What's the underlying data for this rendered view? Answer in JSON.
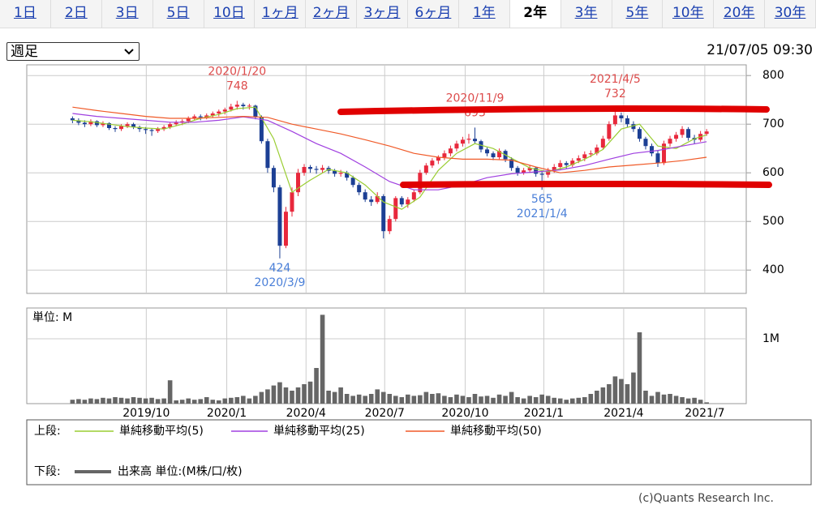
{
  "tabs": {
    "items": [
      "1日",
      "2日",
      "3日",
      "5日",
      "10日",
      "1ヶ月",
      "2ヶ月",
      "3ヶ月",
      "6ヶ月",
      "1年",
      "2年",
      "3年",
      "5年",
      "10年",
      "20年",
      "30年"
    ],
    "selected": 10
  },
  "period_select": "週足",
  "timestamp": "21/07/05 09:30",
  "chart_data": [
    {
      "type": "candlestick",
      "up_color": "#e8283c",
      "down_color": "#1c3f94",
      "candles": [
        [
          712,
          716,
          702,
          708
        ],
        [
          708,
          712,
          698,
          703
        ],
        [
          703,
          708,
          694,
          700
        ],
        [
          700,
          710,
          696,
          706
        ],
        [
          706,
          708,
          694,
          698
        ],
        [
          698,
          706,
          694,
          702
        ],
        [
          702,
          704,
          688,
          692
        ],
        [
          692,
          696,
          684,
          690
        ],
        [
          690,
          700,
          686,
          696
        ],
        [
          696,
          704,
          692,
          700
        ],
        [
          700,
          703,
          690,
          694
        ],
        [
          694,
          697,
          684,
          690
        ],
        [
          690,
          694,
          680,
          688
        ],
        [
          688,
          692,
          676,
          686
        ],
        [
          686,
          694,
          682,
          690
        ],
        [
          690,
          698,
          686,
          694
        ],
        [
          694,
          704,
          690,
          700
        ],
        [
          700,
          708,
          696,
          703
        ],
        [
          703,
          710,
          698,
          706
        ],
        [
          706,
          716,
          702,
          712
        ],
        [
          712,
          720,
          708,
          716
        ],
        [
          716,
          720,
          708,
          714
        ],
        [
          714,
          722,
          710,
          718
        ],
        [
          718,
          726,
          714,
          722
        ],
        [
          722,
          730,
          716,
          726
        ],
        [
          726,
          734,
          720,
          730
        ],
        [
          730,
          742,
          726,
          736
        ],
        [
          736,
          748,
          730,
          740
        ],
        [
          740,
          744,
          730,
          737
        ],
        [
          737,
          742,
          730,
          738
        ],
        [
          738,
          740,
          710,
          715
        ],
        [
          715,
          718,
          660,
          665
        ],
        [
          665,
          670,
          600,
          610
        ],
        [
          610,
          615,
          560,
          570
        ],
        [
          570,
          575,
          424,
          450
        ],
        [
          450,
          530,
          445,
          520
        ],
        [
          520,
          570,
          510,
          560
        ],
        [
          560,
          608,
          552,
          600
        ],
        [
          600,
          618,
          594,
          612
        ],
        [
          612,
          616,
          600,
          608
        ],
        [
          608,
          614,
          598,
          606
        ],
        [
          606,
          616,
          600,
          610
        ],
        [
          610,
          614,
          598,
          604
        ],
        [
          604,
          608,
          592,
          598
        ],
        [
          598,
          606,
          592,
          600
        ],
        [
          600,
          604,
          584,
          590
        ],
        [
          590,
          594,
          570,
          575
        ],
        [
          575,
          580,
          554,
          560
        ],
        [
          560,
          566,
          540,
          545
        ],
        [
          545,
          552,
          532,
          540
        ],
        [
          540,
          560,
          536,
          552
        ],
        [
          552,
          556,
          465,
          480
        ],
        [
          480,
          512,
          474,
          505
        ],
        [
          505,
          552,
          500,
          548
        ],
        [
          548,
          552,
          530,
          535
        ],
        [
          535,
          550,
          528,
          545
        ],
        [
          545,
          565,
          540,
          560
        ],
        [
          560,
          606,
          556,
          600
        ],
        [
          600,
          620,
          596,
          615
        ],
        [
          615,
          630,
          610,
          625
        ],
        [
          625,
          636,
          618,
          632
        ],
        [
          632,
          646,
          626,
          640
        ],
        [
          640,
          656,
          634,
          650
        ],
        [
          650,
          666,
          644,
          660
        ],
        [
          660,
          674,
          654,
          668
        ],
        [
          668,
          680,
          660,
          670
        ],
        [
          670,
          693,
          660,
          665
        ],
        [
          665,
          668,
          642,
          648
        ],
        [
          648,
          652,
          634,
          640
        ],
        [
          640,
          644,
          626,
          632
        ],
        [
          632,
          650,
          628,
          645
        ],
        [
          645,
          648,
          622,
          628
        ],
        [
          628,
          632,
          604,
          610
        ],
        [
          610,
          614,
          594,
          600
        ],
        [
          600,
          610,
          596,
          605
        ],
        [
          605,
          616,
          600,
          610
        ],
        [
          610,
          612,
          592,
          598
        ],
        [
          598,
          604,
          565,
          596
        ],
        [
          596,
          610,
          590,
          604
        ],
        [
          604,
          618,
          600,
          612
        ],
        [
          612,
          626,
          606,
          620
        ],
        [
          620,
          624,
          608,
          616
        ],
        [
          616,
          630,
          612,
          625
        ],
        [
          625,
          636,
          620,
          630
        ],
        [
          630,
          644,
          624,
          638
        ],
        [
          638,
          646,
          632,
          640
        ],
        [
          640,
          658,
          636,
          652
        ],
        [
          652,
          676,
          648,
          670
        ],
        [
          670,
          706,
          666,
          700
        ],
        [
          700,
          732,
          696,
          718
        ],
        [
          718,
          724,
          704,
          712
        ],
        [
          712,
          718,
          694,
          700
        ],
        [
          700,
          706,
          684,
          690
        ],
        [
          690,
          694,
          664,
          670
        ],
        [
          670,
          674,
          648,
          655
        ],
        [
          655,
          660,
          634,
          640
        ],
        [
          640,
          646,
          612,
          620
        ],
        [
          620,
          666,
          616,
          660
        ],
        [
          660,
          676,
          654,
          670
        ],
        [
          670,
          684,
          664,
          678
        ],
        [
          678,
          696,
          672,
          690
        ],
        [
          690,
          694,
          666,
          672
        ],
        [
          672,
          678,
          660,
          668
        ],
        [
          668,
          686,
          664,
          680
        ],
        [
          680,
          690,
          676,
          685
        ]
      ],
      "xlim": [
        -7.5,
        110.5
      ],
      "xticks": [
        12.1,
        25.3,
        38.3,
        51.2,
        64.4,
        77.3,
        90.4,
        103.7
      ],
      "ylim": [
        352,
        822
      ],
      "yticks": [
        400,
        500,
        600,
        700,
        800
      ],
      "grid": true,
      "series": [
        {
          "name": "単純移動平均(5)",
          "color": "#9acd32",
          "x": [
            0,
            3,
            6,
            9,
            12,
            15,
            18,
            21,
            24,
            27,
            30,
            33,
            36,
            39,
            42,
            45,
            48,
            51,
            54,
            57,
            60,
            63,
            66,
            69,
            72,
            75,
            78,
            81,
            84,
            87,
            90,
            93,
            96,
            99,
            102,
            104
          ],
          "values": [
            708,
            705,
            700,
            695,
            692,
            690,
            700,
            712,
            720,
            732,
            735,
            670,
            560,
            585,
            607,
            600,
            575,
            540,
            525,
            550,
            605,
            640,
            660,
            650,
            630,
            610,
            602,
            612,
            628,
            648,
            690,
            700,
            655,
            650,
            670,
            678
          ]
        },
        {
          "name": "単純移動平均(25)",
          "color": "#a040e0",
          "x": [
            0,
            4,
            8,
            12,
            16,
            20,
            24,
            28,
            32,
            36,
            40,
            44,
            48,
            52,
            56,
            60,
            64,
            68,
            72,
            76,
            80,
            84,
            88,
            92,
            96,
            100,
            104
          ],
          "values": [
            722,
            716,
            712,
            708,
            704,
            704,
            708,
            715,
            708,
            685,
            660,
            640,
            612,
            582,
            565,
            565,
            575,
            590,
            598,
            602,
            606,
            615,
            628,
            640,
            646,
            655,
            664
          ]
        },
        {
          "name": "単純移動平均(50)",
          "color": "#f05a28",
          "x": [
            0,
            4,
            8,
            12,
            16,
            20,
            24,
            28,
            32,
            36,
            40,
            44,
            48,
            52,
            56,
            60,
            64,
            68,
            72,
            76,
            80,
            84,
            88,
            92,
            96,
            100,
            104
          ],
          "values": [
            735,
            728,
            722,
            716,
            712,
            712,
            714,
            716,
            714,
            700,
            690,
            680,
            668,
            655,
            640,
            632,
            628,
            628,
            626,
            612,
            600,
            605,
            612,
            616,
            620,
            625,
            632
          ]
        }
      ],
      "annotations": [
        {
          "label": "2020/1/20",
          "value": 748,
          "x": 27,
          "kind": "high",
          "color": "#dd4b4b"
        },
        {
          "label": "2020/11/9",
          "value": 693,
          "x": 66,
          "kind": "high",
          "color": "#dd4b4b"
        },
        {
          "label": "2021/4/5",
          "value": 732,
          "x": 89,
          "kind": "high",
          "color": "#dd4b4b"
        },
        {
          "label": "2020/3/9",
          "value": 424,
          "x": 34,
          "kind": "low",
          "color": "#4a7fd8"
        },
        {
          "label": "2021/1/4",
          "value": 565,
          "x": 77,
          "kind": "low",
          "color": "#4a7fd8"
        }
      ]
    },
    {
      "type": "bar",
      "axis_label": "単位: M",
      "series_name": "出来高 単位:(M株/口/枚)",
      "color": "#666666",
      "values": [
        0.06,
        0.07,
        0.06,
        0.08,
        0.07,
        0.09,
        0.08,
        0.1,
        0.09,
        0.08,
        0.1,
        0.09,
        0.08,
        0.09,
        0.07,
        0.08,
        0.36,
        0.05,
        0.06,
        0.08,
        0.06,
        0.07,
        0.1,
        0.06,
        0.05,
        0.08,
        0.09,
        0.1,
        0.12,
        0.08,
        0.12,
        0.18,
        0.22,
        0.28,
        0.33,
        0.25,
        0.2,
        0.25,
        0.3,
        0.34,
        0.55,
        1.37,
        0.2,
        0.18,
        0.25,
        0.15,
        0.12,
        0.14,
        0.12,
        0.15,
        0.22,
        0.18,
        0.15,
        0.12,
        0.1,
        0.14,
        0.12,
        0.13,
        0.18,
        0.15,
        0.16,
        0.12,
        0.1,
        0.14,
        0.12,
        0.1,
        0.15,
        0.11,
        0.12,
        0.09,
        0.14,
        0.12,
        0.18,
        0.1,
        0.08,
        0.12,
        0.1,
        0.14,
        0.12,
        0.09,
        0.08,
        0.06,
        0.08,
        0.09,
        0.1,
        0.15,
        0.2,
        0.25,
        0.3,
        0.42,
        0.38,
        0.3,
        0.48,
        1.1,
        0.2,
        0.12,
        0.18,
        0.14,
        0.15,
        0.12,
        0.1,
        0.08,
        0.09,
        0.06,
        0.02
      ],
      "xlim": [
        -7.5,
        110.5
      ],
      "xticks": [
        {
          "value": 12.1,
          "label": "2019/10"
        },
        {
          "value": 25.3,
          "label": "2020/1"
        },
        {
          "value": 38.3,
          "label": "2020/4"
        },
        {
          "value": 51.2,
          "label": "2020/7"
        },
        {
          "value": 64.4,
          "label": "2020/10"
        },
        {
          "value": 77.3,
          "label": "2021/1"
        },
        {
          "value": 90.4,
          "label": "2021/4"
        },
        {
          "value": 103.7,
          "label": "2021/7"
        }
      ],
      "ylim": [
        0,
        1.475
      ],
      "yticks": [
        {
          "value": 1,
          "label": "1M"
        }
      ],
      "grid": true
    }
  ],
  "legend": {
    "upper_label": "上段:",
    "lower_label": "下段:"
  },
  "copyright": "(c)Quants Research Inc."
}
